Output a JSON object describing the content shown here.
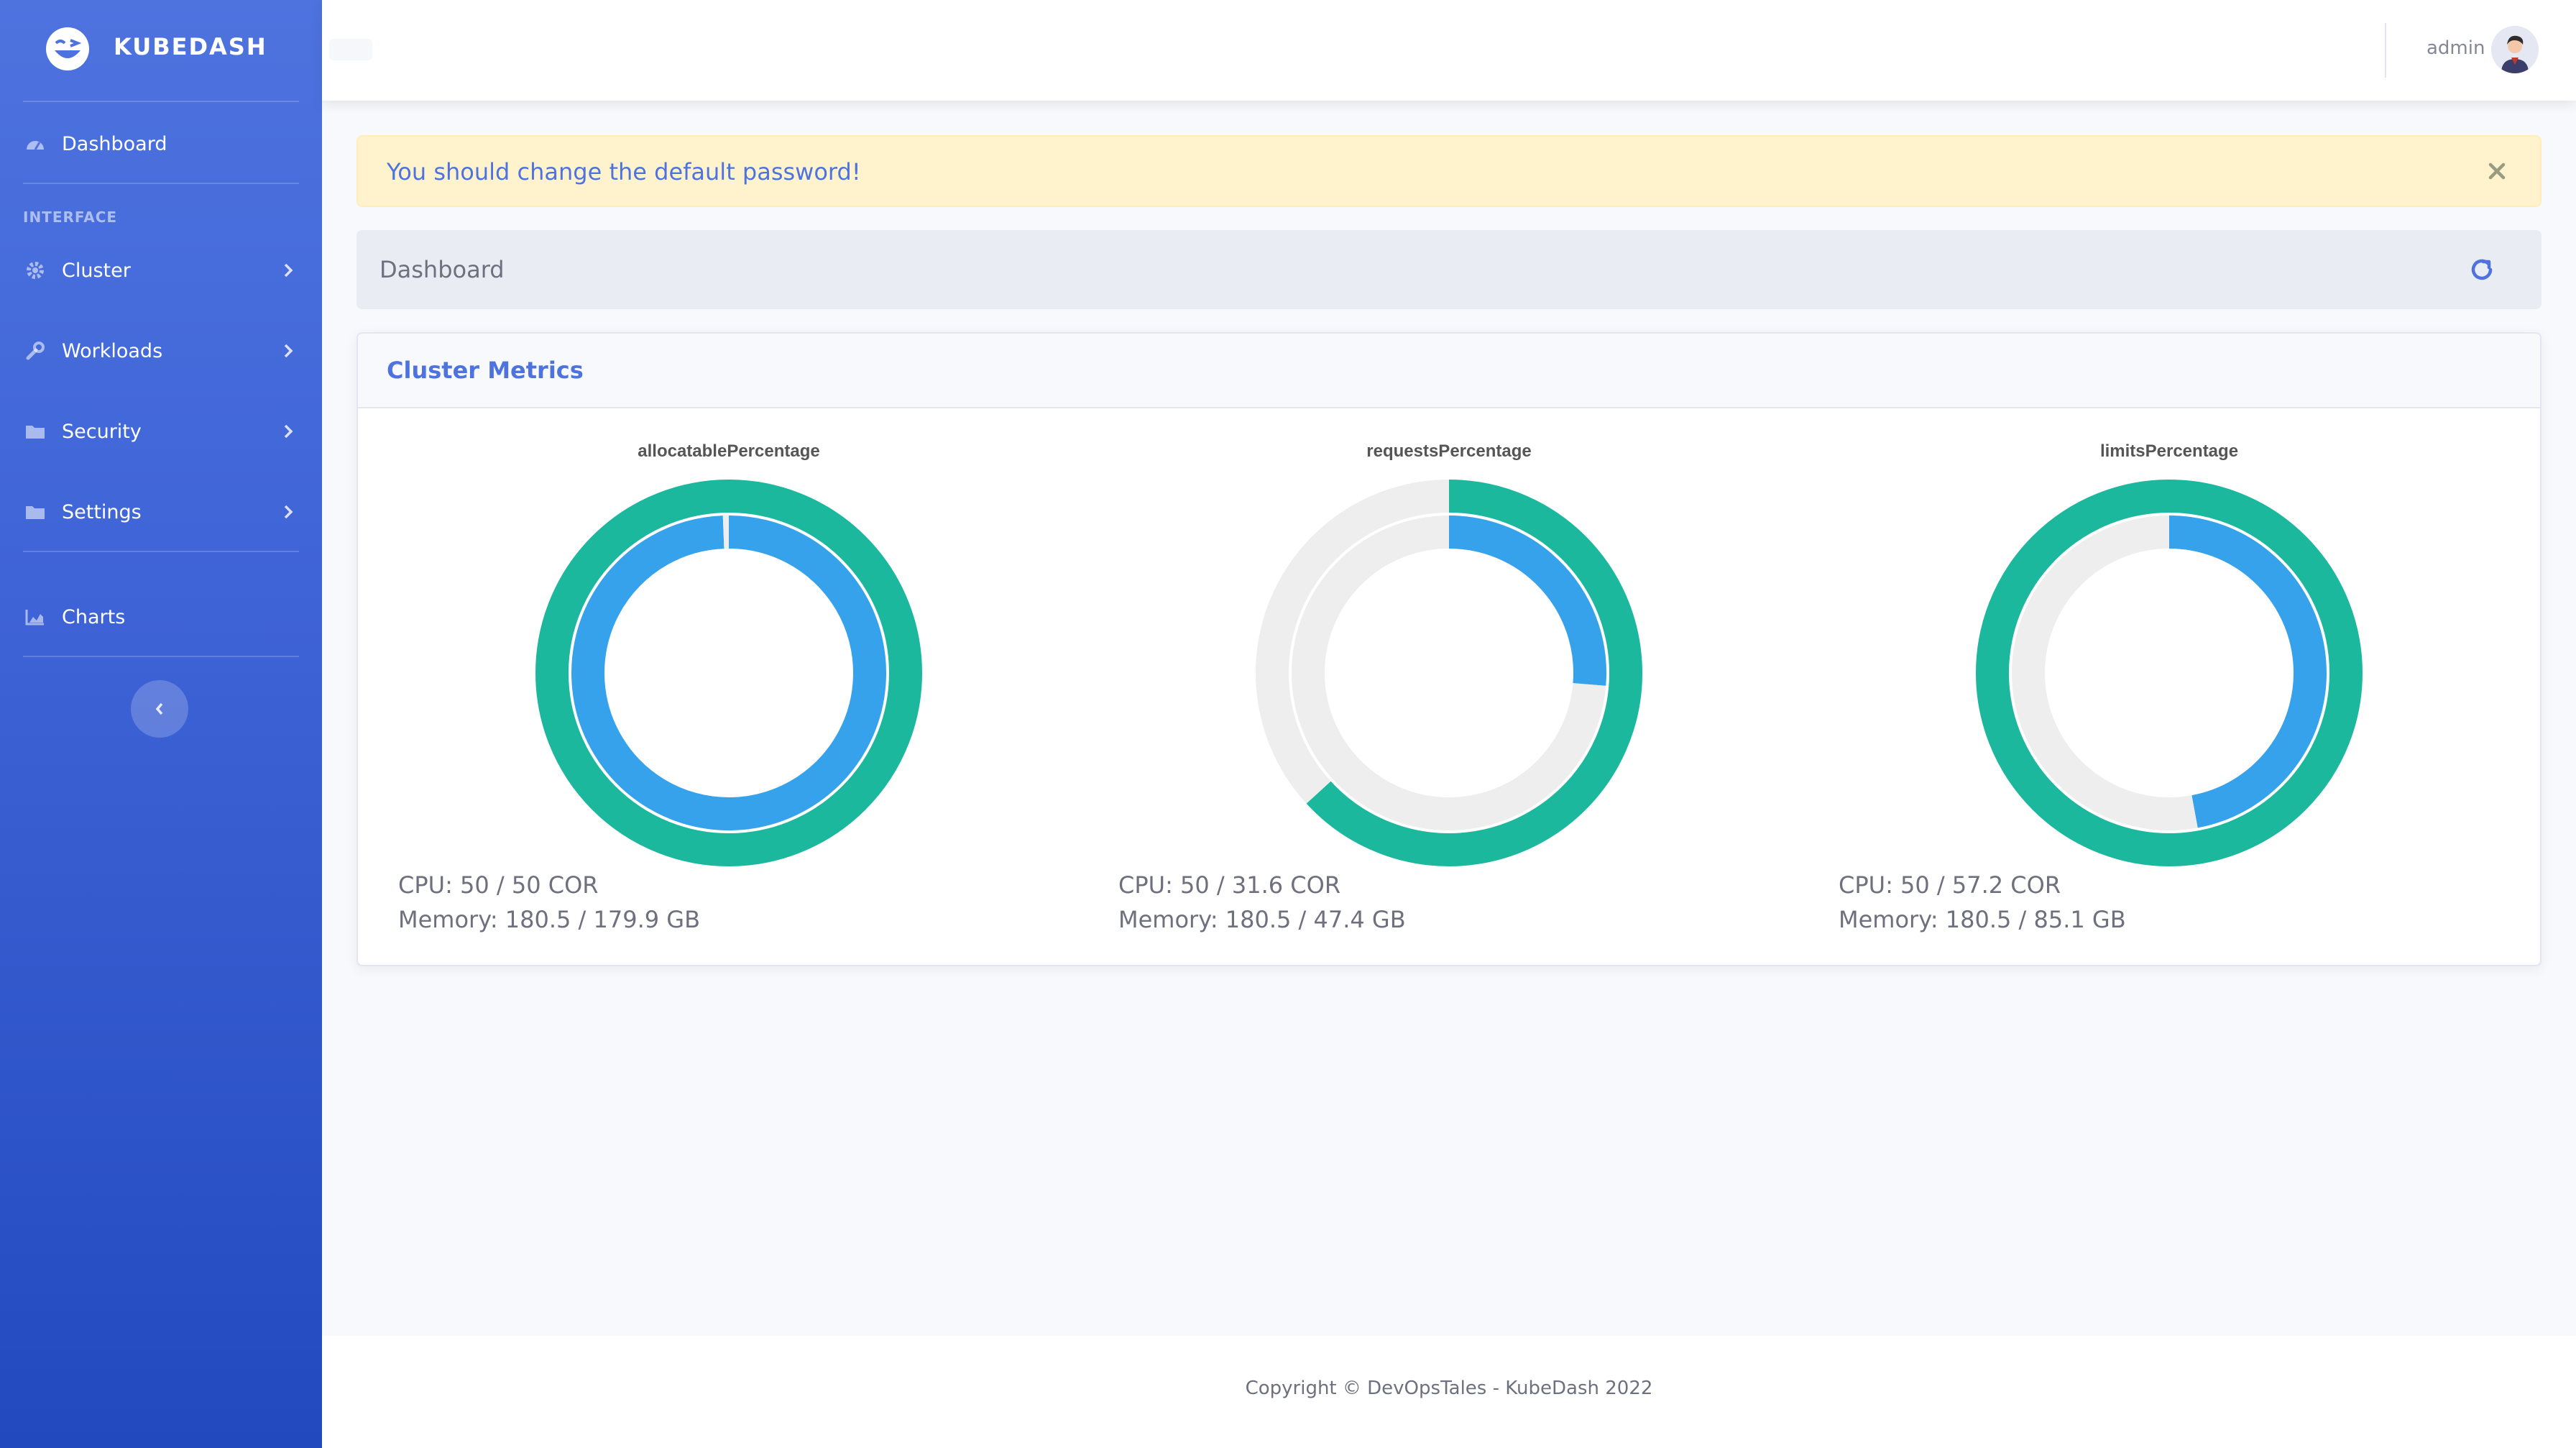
{
  "brand": {
    "name": "KUBEDASH",
    "icon": "laughing-face-icon"
  },
  "sidebar": {
    "dashboard": {
      "label": "Dashboard",
      "icon": "tachometer-icon"
    },
    "section_heading": "INTERFACE",
    "items": [
      {
        "label": "Cluster",
        "icon": "cog-icon"
      },
      {
        "label": "Workloads",
        "icon": "wrench-icon"
      },
      {
        "label": "Security",
        "icon": "folder-icon"
      },
      {
        "label": "Settings",
        "icon": "folder-icon"
      }
    ],
    "charts": {
      "label": "Charts",
      "icon": "area-chart-icon"
    }
  },
  "topbar": {
    "user_name": "admin"
  },
  "alert": {
    "text": "You should change the default password!"
  },
  "breadcrumb": {
    "title": "Dashboard"
  },
  "card": {
    "title": "Cluster Metrics"
  },
  "chart_data": [
    {
      "type": "pie",
      "title": "allocatablePercentage",
      "rings": [
        {
          "name": "outer",
          "values": [
            100,
            0
          ]
        },
        {
          "name": "inner",
          "values": [
            99.4,
            0.6
          ]
        }
      ],
      "cpu": "CPU: 50 / 50 COR",
      "memory": "Memory: 180.5 / 179.9 GB"
    },
    {
      "type": "pie",
      "title": "requestsPercentage",
      "rings": [
        {
          "name": "outer",
          "values": [
            63.2,
            36.8
          ]
        },
        {
          "name": "inner",
          "values": [
            26.3,
            73.7
          ]
        }
      ],
      "cpu": "CPU: 50 / 31.6 COR",
      "memory": "Memory: 180.5 / 47.4 GB"
    },
    {
      "type": "pie",
      "title": "limitsPercentage",
      "rings": [
        {
          "name": "outer",
          "values": [
            100,
            0
          ]
        },
        {
          "name": "inner",
          "values": [
            47.1,
            52.9
          ]
        }
      ],
      "cpu": "CPU: 50 / 57.2 COR",
      "memory": "Memory: 180.5 / 85.1 GB"
    }
  ],
  "colors": {
    "outer": "#1cb89d",
    "inner": "#36a2eb",
    "empty": "#eeeeee"
  },
  "footer": {
    "text": "Copyright © DevOpsTales - KubeDash 2022"
  }
}
